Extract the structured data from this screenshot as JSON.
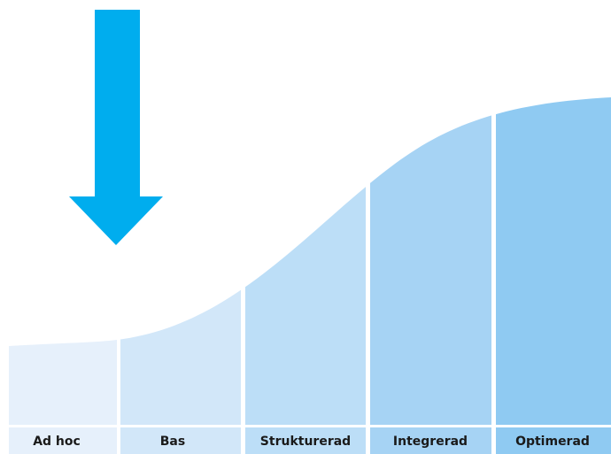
{
  "stages": [
    {
      "label": "Ad hoc",
      "color": "#e6f0fb"
    },
    {
      "label": "Bas",
      "color": "#d2e7f9"
    },
    {
      "label": "Strukturerad",
      "color": "#bcdef7"
    },
    {
      "label": "Integrerad",
      "color": "#a6d3f4"
    },
    {
      "label": "Optimerad",
      "color": "#8fcaf2"
    }
  ],
  "current_stage": "Ad hoc",
  "colors": {
    "arrow": "#00adee",
    "background": "#ffffff"
  },
  "icons": {
    "indicator": "down-arrow-icon"
  }
}
